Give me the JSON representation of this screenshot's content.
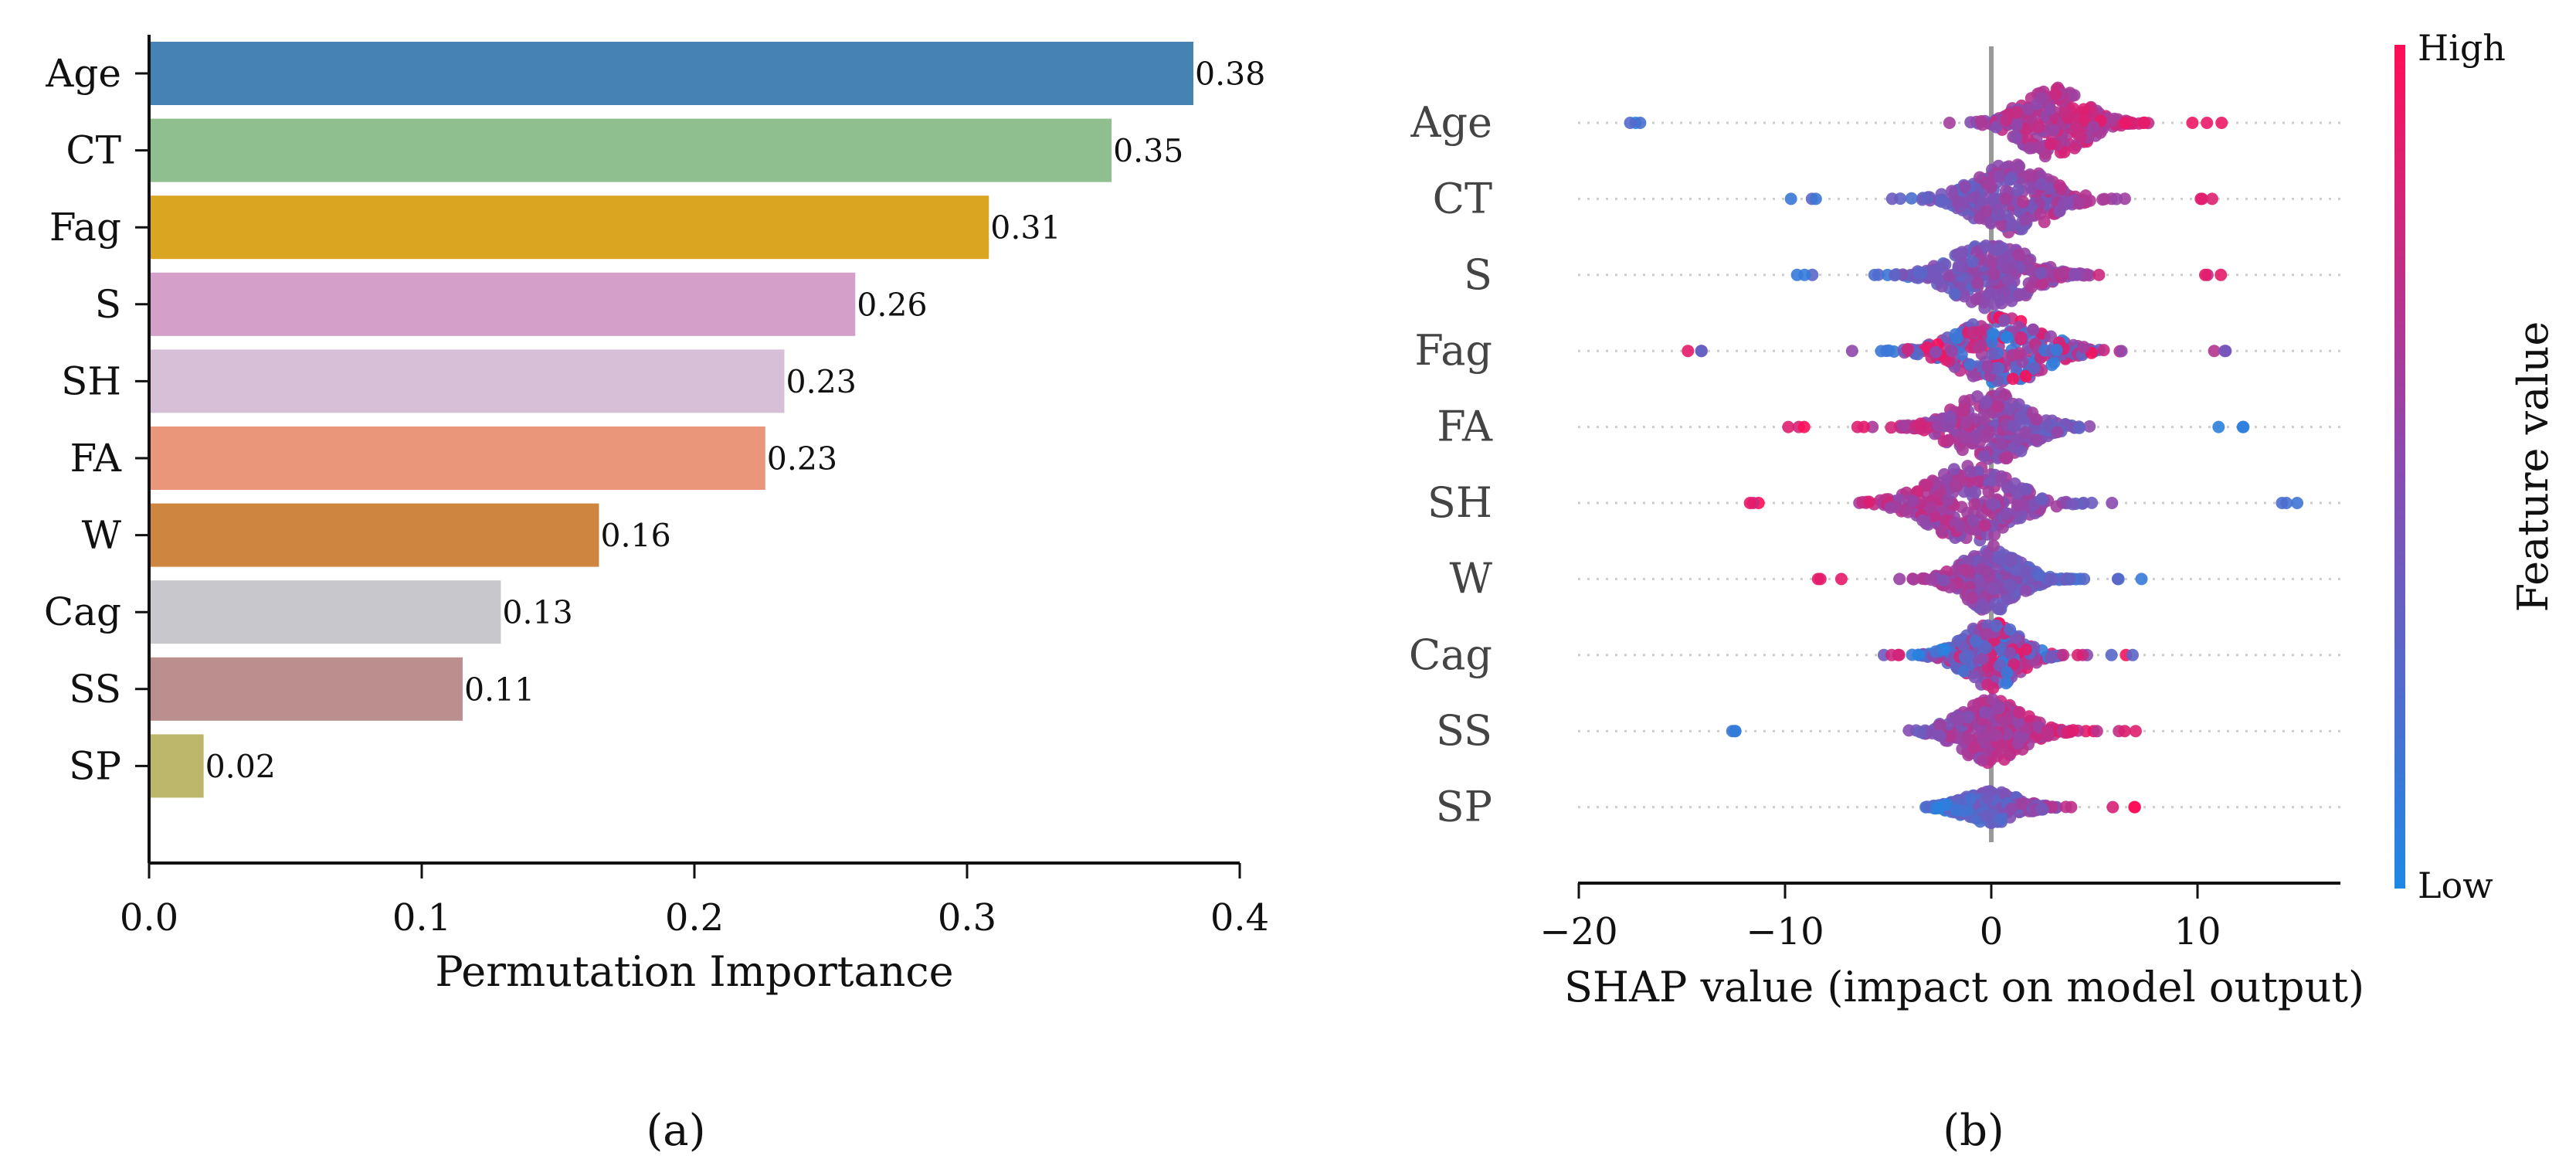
{
  "chart_data": [
    {
      "type": "bar",
      "orientation": "horizontal",
      "panel": "(a)",
      "categories": [
        "Age",
        "CT",
        "Fag",
        "S",
        "SH",
        "FA",
        "W",
        "Cag",
        "SS",
        "SP"
      ],
      "values": [
        0.383,
        0.353,
        0.308,
        0.259,
        0.233,
        0.226,
        0.165,
        0.129,
        0.115,
        0.02
      ],
      "value_labels": [
        "0.38",
        "0.35",
        "0.31",
        "0.26",
        "0.23",
        "0.23",
        "0.16",
        "0.13",
        "0.11",
        "0.02"
      ],
      "colors": [
        "#4682b4",
        "#8fbf8f",
        "#daa520",
        "#d4a0c9",
        "#d8bfd8",
        "#e9967a",
        "#cd853f",
        "#c8c8cc",
        "#bc8f8f",
        "#bdb76b"
      ],
      "xlabel": "Permutation Importance",
      "xlim": [
        0,
        0.4
      ],
      "xticks": [
        0.0,
        0.1,
        0.2,
        0.3,
        0.4
      ],
      "xtick_labels": [
        "0.0",
        "0.1",
        "0.2",
        "0.3",
        "0.4"
      ]
    },
    {
      "type": "scatter",
      "subtype": "shap-beeswarm",
      "panel": "(b)",
      "features": [
        "Age",
        "CT",
        "S",
        "Fag",
        "FA",
        "SH",
        "W",
        "Cag",
        "SS",
        "SP"
      ],
      "xlabel": "SHAP value (impact on model output)",
      "xlim": [
        -20,
        16.5
      ],
      "xticks": [
        -20,
        -10,
        0,
        10
      ],
      "xtick_labels": [
        "−20",
        "−10",
        "0",
        "10"
      ],
      "colorbar": {
        "label": "Feature value",
        "high": "High",
        "low": "Low",
        "high_color": "#ff0d57",
        "low_color": "#1e88e5"
      },
      "series": [
        {
          "name": "Age",
          "min": -18.2,
          "max": 11.2,
          "center": 3,
          "spread": 3.5,
          "width": 1.0,
          "trend": 1
        },
        {
          "name": "CT",
          "min": -9.8,
          "max": 11.5,
          "center": 1,
          "spread": 4,
          "width": 1.0,
          "trend": 1
        },
        {
          "name": "S",
          "min": -9.5,
          "max": 11.2,
          "center": 0,
          "spread": 4,
          "width": 0.95,
          "trend": 1
        },
        {
          "name": "Fag",
          "min": -15.5,
          "max": 11.5,
          "center": 0.5,
          "spread": 4.5,
          "width": 1.0,
          "trend": 0
        },
        {
          "name": "FA",
          "min": -10,
          "max": 12.5,
          "center": 0,
          "spread": 4,
          "width": 1.0,
          "trend": -1
        },
        {
          "name": "SH",
          "min": -12.3,
          "max": 15.5,
          "center": -1,
          "spread": 4.5,
          "width": 1.1,
          "trend": -1
        },
        {
          "name": "W",
          "min": -8.5,
          "max": 7.5,
          "center": 0,
          "spread": 3,
          "width": 0.95,
          "trend": -1
        },
        {
          "name": "Cag",
          "min": -5.5,
          "max": 7,
          "center": 0,
          "spread": 3,
          "width": 0.95,
          "trend": 0
        },
        {
          "name": "SS",
          "min": -12.7,
          "max": 7,
          "center": 0,
          "spread": 3.5,
          "width": 0.9,
          "trend": 1
        },
        {
          "name": "SP",
          "min": -3.2,
          "max": 7.3,
          "center": 0,
          "spread": 3,
          "width": 0.45,
          "trend": 1
        }
      ]
    }
  ],
  "captions": {
    "a": "(a)",
    "b": "(b)"
  },
  "colors": {
    "axis": "#111111",
    "zero_line": "#999999",
    "grid_dots": "#cccccc",
    "label_gray": "#444444"
  }
}
